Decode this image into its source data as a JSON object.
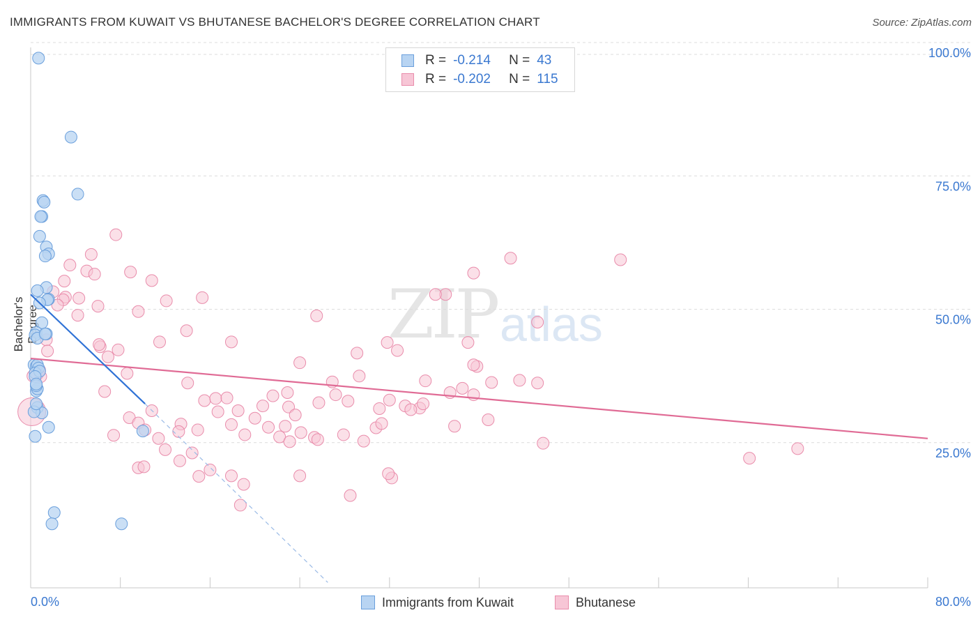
{
  "title": "IMMIGRANTS FROM KUWAIT VS BHUTANESE BACHELOR'S DEGREE CORRELATION CHART",
  "source": "Source: ZipAtlas.com",
  "watermark": {
    "zip": "ZIP",
    "atlas": "atlas"
  },
  "legend": {
    "r_label": "R =",
    "n_label": "N =",
    "rows": [
      {
        "r": "-0.214",
        "n": "43"
      },
      {
        "r": "-0.202",
        "n": "115"
      }
    ]
  },
  "colors": {
    "kuwait_fill": "#b8d4f2",
    "kuwait_stroke": "#6a9fdc",
    "kuwait_line": "#2f72d6",
    "bhutan_fill": "#f7c6d6",
    "bhutan_stroke": "#e98cab",
    "bhutan_line": "#e06b95",
    "axis_label": "#3a78d0"
  },
  "chart_data": {
    "type": "scatter",
    "title": "IMMIGRANTS FROM KUWAIT VS BHUTANESE BACHELOR'S DEGREE CORRELATION CHART",
    "xlabel": "",
    "ylabel": "Bachelor's Degree",
    "xlim": [
      0,
      80
    ],
    "ylim": [
      0,
      100
    ],
    "x_tick_labels": [
      "0.0%",
      "80.0%"
    ],
    "y_tick_labels": [
      "100.0%",
      "75.0%",
      "50.0%",
      "25.0%"
    ],
    "y_ticks": [
      100,
      75,
      50,
      25
    ],
    "grid": true,
    "legend_position": "top-center",
    "series": [
      {
        "name": "Immigrants from Kuwait",
        "r": -0.214,
        "n": 43,
        "trend": {
          "x0": 0,
          "y0": 55,
          "x1": 10.2,
          "y1": 34.5,
          "dash_to_x": 26.5,
          "dash_to_y": 1
        },
        "points": [
          [
            0.7,
            99.3
          ],
          [
            3.6,
            84.5
          ],
          [
            4.2,
            73.8
          ],
          [
            1.1,
            72.6
          ],
          [
            1.2,
            72.3
          ],
          [
            1.0,
            69.6
          ],
          [
            0.9,
            69.6
          ],
          [
            0.8,
            65.9
          ],
          [
            1.4,
            63.9
          ],
          [
            1.6,
            62.6
          ],
          [
            1.3,
            62.2
          ],
          [
            1.4,
            56.3
          ],
          [
            0.6,
            55.7
          ],
          [
            1.6,
            54.1
          ],
          [
            1.5,
            54.0
          ],
          [
            0.8,
            53.4
          ],
          [
            1.0,
            49.7
          ],
          [
            0.5,
            47.9
          ],
          [
            0.4,
            47.4
          ],
          [
            0.6,
            46.8
          ],
          [
            1.4,
            47.6
          ],
          [
            1.3,
            47.6
          ],
          [
            0.3,
            41.8
          ],
          [
            0.5,
            41.5
          ],
          [
            0.6,
            41.8
          ],
          [
            0.7,
            41.2
          ],
          [
            0.4,
            40.3
          ],
          [
            0.8,
            40.6
          ],
          [
            0.4,
            39.6
          ],
          [
            0.5,
            36.9
          ],
          [
            0.6,
            37.3
          ],
          [
            0.5,
            37.9
          ],
          [
            0.5,
            38.2
          ],
          [
            0.6,
            33.8
          ],
          [
            1.0,
            32.8
          ],
          [
            1.6,
            30.1
          ],
          [
            10.0,
            29.4
          ],
          [
            2.1,
            14.1
          ],
          [
            1.9,
            12.0
          ],
          [
            8.1,
            12.0
          ],
          [
            0.3,
            33.0
          ],
          [
            0.5,
            34.5
          ],
          [
            0.4,
            28.4
          ]
        ]
      },
      {
        "name": "Bhutanese",
        "r": -0.202,
        "n": 115,
        "trend": {
          "x0": 0,
          "y0": 43,
          "x1": 80,
          "y1": 28
        },
        "points": [
          [
            0.1,
            33.0
          ],
          [
            7.6,
            66.2
          ],
          [
            5.4,
            62.5
          ],
          [
            3.5,
            60.5
          ],
          [
            5.0,
            59.4
          ],
          [
            8.9,
            59.2
          ],
          [
            5.7,
            58.8
          ],
          [
            10.8,
            57.6
          ],
          [
            3.0,
            57.5
          ],
          [
            2.0,
            55.5
          ],
          [
            3.1,
            54.5
          ],
          [
            4.3,
            54.3
          ],
          [
            2.9,
            54.0
          ],
          [
            15.3,
            54.4
          ],
          [
            12.1,
            53.8
          ],
          [
            2.4,
            53.0
          ],
          [
            6.0,
            52.8
          ],
          [
            9.6,
            51.8
          ],
          [
            4.2,
            51.1
          ],
          [
            37.0,
            55.0
          ],
          [
            36.1,
            55.0
          ],
          [
            39.5,
            59.0
          ],
          [
            42.8,
            61.8
          ],
          [
            52.6,
            61.5
          ],
          [
            45.2,
            49.8
          ],
          [
            25.5,
            51.0
          ],
          [
            13.9,
            48.2
          ],
          [
            1.4,
            46.5
          ],
          [
            1.5,
            44.4
          ],
          [
            6.2,
            45.2
          ],
          [
            6.1,
            45.6
          ],
          [
            7.8,
            44.6
          ],
          [
            11.5,
            46.1
          ],
          [
            17.9,
            46.1
          ],
          [
            31.8,
            46.0
          ],
          [
            39.0,
            46.0
          ],
          [
            32.7,
            44.5
          ],
          [
            29.1,
            44.0
          ],
          [
            6.9,
            43.3
          ],
          [
            24.0,
            42.2
          ],
          [
            39.8,
            41.5
          ],
          [
            39.5,
            41.8
          ],
          [
            8.6,
            40.2
          ],
          [
            0.6,
            40.0
          ],
          [
            0.8,
            40.8
          ],
          [
            0.9,
            39.6
          ],
          [
            0.2,
            39.7
          ],
          [
            14.0,
            38.4
          ],
          [
            26.9,
            38.6
          ],
          [
            29.3,
            39.7
          ],
          [
            35.2,
            38.8
          ],
          [
            37.4,
            36.6
          ],
          [
            38.5,
            37.4
          ],
          [
            39.5,
            36.2
          ],
          [
            41.1,
            38.5
          ],
          [
            43.6,
            38.9
          ],
          [
            45.2,
            38.4
          ],
          [
            6.6,
            36.8
          ],
          [
            15.5,
            35.1
          ],
          [
            16.5,
            35.5
          ],
          [
            17.5,
            35.6
          ],
          [
            21.6,
            36.0
          ],
          [
            22.9,
            36.6
          ],
          [
            25.7,
            34.7
          ],
          [
            27.2,
            36.2
          ],
          [
            28.3,
            35.0
          ],
          [
            32.0,
            35.2
          ],
          [
            33.4,
            34.1
          ],
          [
            34.7,
            33.7
          ],
          [
            35.0,
            34.5
          ],
          [
            10.8,
            33.2
          ],
          [
            18.5,
            33.2
          ],
          [
            20.7,
            34.1
          ],
          [
            23.0,
            33.9
          ],
          [
            31.1,
            33.6
          ],
          [
            33.9,
            33.4
          ],
          [
            8.8,
            31.9
          ],
          [
            16.7,
            33.0
          ],
          [
            20.0,
            31.8
          ],
          [
            23.6,
            32.4
          ],
          [
            9.6,
            30.9
          ],
          [
            13.4,
            30.7
          ],
          [
            17.9,
            30.6
          ],
          [
            21.2,
            30.1
          ],
          [
            22.7,
            30.3
          ],
          [
            10.2,
            29.6
          ],
          [
            13.2,
            29.3
          ],
          [
            14.9,
            29.6
          ],
          [
            24.1,
            29.1
          ],
          [
            25.3,
            28.2
          ],
          [
            27.9,
            28.7
          ],
          [
            30.8,
            30.0
          ],
          [
            31.3,
            30.8
          ],
          [
            37.8,
            30.3
          ],
          [
            40.8,
            31.5
          ],
          [
            7.4,
            28.6
          ],
          [
            11.4,
            28.0
          ],
          [
            19.1,
            28.7
          ],
          [
            22.2,
            28.3
          ],
          [
            23.1,
            27.4
          ],
          [
            25.6,
            27.8
          ],
          [
            29.7,
            27.5
          ],
          [
            12.0,
            25.9
          ],
          [
            14.4,
            25.3
          ],
          [
            13.3,
            23.8
          ],
          [
            16.0,
            22.1
          ],
          [
            15.0,
            20.9
          ],
          [
            17.9,
            21.0
          ],
          [
            19.0,
            19.4
          ],
          [
            9.6,
            22.5
          ],
          [
            10.1,
            22.7
          ],
          [
            24.0,
            21.0
          ],
          [
            32.2,
            20.6
          ],
          [
            31.9,
            21.4
          ],
          [
            28.5,
            17.3
          ],
          [
            18.7,
            15.5
          ],
          [
            45.7,
            27.1
          ],
          [
            64.1,
            24.3
          ],
          [
            68.4,
            26.1
          ]
        ]
      }
    ]
  },
  "bottom_legend": [
    "Immigrants from Kuwait",
    "Bhutanese"
  ]
}
